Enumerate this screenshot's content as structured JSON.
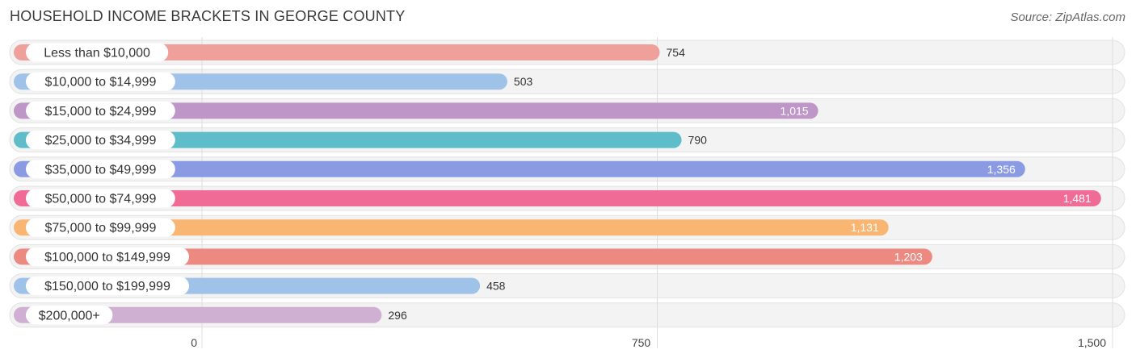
{
  "header": {
    "title": "HOUSEHOLD INCOME BRACKETS IN GEORGE COUNTY",
    "source": "Source: ZipAtlas.com"
  },
  "chart_data": {
    "type": "bar",
    "orientation": "horizontal",
    "title": "HOUSEHOLD INCOME BRACKETS IN GEORGE COUNTY",
    "categories": [
      "Less than $10,000",
      "$10,000 to $14,999",
      "$15,000 to $24,999",
      "$25,000 to $34,999",
      "$35,000 to $49,999",
      "$50,000 to $74,999",
      "$75,000 to $99,999",
      "$100,000 to $149,999",
      "$150,000 to $199,999",
      "$200,000+"
    ],
    "values": [
      754,
      503,
      1015,
      790,
      1356,
      1481,
      1131,
      1203,
      458,
      296
    ],
    "value_labels": [
      "754",
      "503",
      "1,015",
      "790",
      "1,356",
      "1,481",
      "1,131",
      "1,203",
      "458",
      "296"
    ],
    "colors": [
      "#f0a09b",
      "#9fc2e8",
      "#bf96c8",
      "#5fbdc9",
      "#8b9be3",
      "#f06b96",
      "#f9b572",
      "#ec8a82",
      "#9fc2e8",
      "#cfb0d3"
    ],
    "xlim": [
      0,
      1500
    ],
    "ticks": [
      0,
      750,
      1500
    ],
    "tick_labels": [
      "0",
      "750",
      "1,500"
    ],
    "grid": true,
    "legend": "none"
  }
}
